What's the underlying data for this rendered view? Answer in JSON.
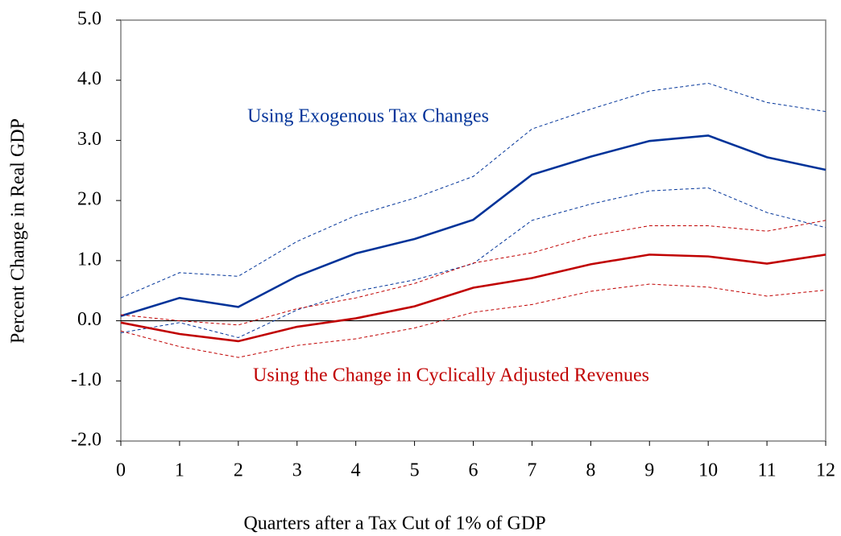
{
  "chart_data": {
    "type": "line",
    "xlabel": "Quarters after a Tax Cut of 1% of GDP",
    "ylabel": "Percent Change in Real GDP",
    "x": [
      0,
      1,
      2,
      3,
      4,
      5,
      6,
      7,
      8,
      9,
      10,
      11,
      12
    ],
    "xlim": [
      0,
      12
    ],
    "xticks": [
      0,
      1,
      2,
      3,
      4,
      5,
      6,
      7,
      8,
      9,
      10,
      11,
      12
    ],
    "ylim": [
      -2,
      5
    ],
    "yticks": [
      {
        "value": -2,
        "label": "-2.0"
      },
      {
        "value": -1,
        "label": "-1.0"
      },
      {
        "value": 0,
        "label": "0.0"
      },
      {
        "value": 1,
        "label": "1.0"
      },
      {
        "value": 2,
        "label": "2.0"
      },
      {
        "value": 3,
        "label": "3.0"
      },
      {
        "value": 4,
        "label": "4.0"
      },
      {
        "value": 5,
        "label": "5.0"
      }
    ],
    "zero_line": true,
    "series": [
      {
        "color": "#003399",
        "dashed": false,
        "values": [
          0.08,
          0.38,
          0.23,
          0.74,
          1.12,
          1.36,
          1.68,
          2.43,
          2.73,
          2.99,
          3.08,
          2.72,
          2.51
        ]
      },
      {
        "color": "#003399",
        "dashed": true,
        "values": [
          0.38,
          0.8,
          0.74,
          1.32,
          1.75,
          2.04,
          2.4,
          3.19,
          3.52,
          3.82,
          3.95,
          3.63,
          3.48
        ]
      },
      {
        "color": "#003399",
        "dashed": true,
        "values": [
          -0.2,
          -0.03,
          -0.28,
          0.18,
          0.49,
          0.68,
          0.95,
          1.67,
          1.94,
          2.16,
          2.21,
          1.8,
          1.55
        ]
      },
      {
        "color": "#c00000",
        "dashed": false,
        "values": [
          -0.03,
          -0.22,
          -0.34,
          -0.1,
          0.04,
          0.24,
          0.55,
          0.71,
          0.94,
          1.1,
          1.07,
          0.95,
          1.1
        ]
      },
      {
        "color": "#c00000",
        "dashed": true,
        "values": [
          0.1,
          0.0,
          -0.07,
          0.2,
          0.38,
          0.62,
          0.96,
          1.13,
          1.41,
          1.58,
          1.58,
          1.49,
          1.67
        ]
      },
      {
        "color": "#c00000",
        "dashed": true,
        "values": [
          -0.17,
          -0.43,
          -0.61,
          -0.41,
          -0.3,
          -0.12,
          0.14,
          0.27,
          0.49,
          0.61,
          0.56,
          0.41,
          0.51
        ]
      }
    ],
    "annotations": [
      {
        "text": "Using Exogenous Tax Changes",
        "color": "#003399"
      },
      {
        "text": "Using the Change in Cyclically Adjusted Revenues",
        "color": "#c00000"
      }
    ]
  }
}
